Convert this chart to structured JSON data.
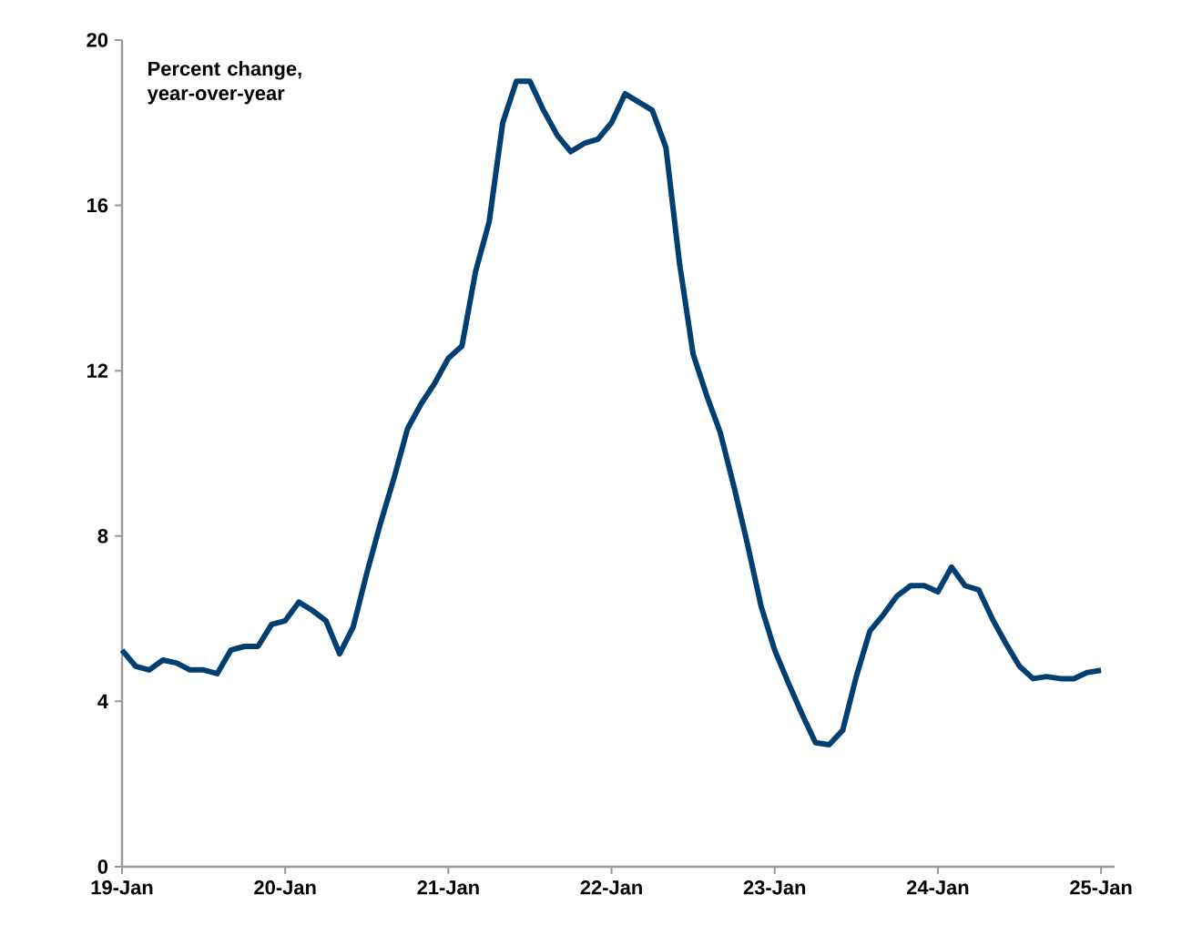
{
  "chart_data": {
    "type": "line",
    "title": "Percent change, year-over-year",
    "x": [
      "2019-01",
      "2019-02",
      "2019-03",
      "2019-04",
      "2019-05",
      "2019-06",
      "2019-07",
      "2019-08",
      "2019-09",
      "2019-10",
      "2019-11",
      "2019-12",
      "2020-01",
      "2020-02",
      "2020-03",
      "2020-04",
      "2020-05",
      "2020-06",
      "2020-07",
      "2020-08",
      "2020-09",
      "2020-10",
      "2020-11",
      "2020-12",
      "2021-01",
      "2021-02",
      "2021-03",
      "2021-04",
      "2021-05",
      "2021-06",
      "2021-07",
      "2021-08",
      "2021-09",
      "2021-10",
      "2021-11",
      "2021-12",
      "2022-01",
      "2022-02",
      "2022-03",
      "2022-04",
      "2022-05",
      "2022-06",
      "2022-07",
      "2022-08",
      "2022-09",
      "2022-10",
      "2022-11",
      "2022-12",
      "2023-01",
      "2023-02",
      "2023-03",
      "2023-04",
      "2023-05",
      "2023-06",
      "2023-07",
      "2023-08",
      "2023-09",
      "2023-10",
      "2023-11",
      "2023-12",
      "2024-01",
      "2024-02",
      "2024-03",
      "2024-04",
      "2024-05",
      "2024-06",
      "2024-07",
      "2024-08",
      "2024-09",
      "2024-10",
      "2024-11",
      "2024-12",
      "2025-01"
    ],
    "series": [
      {
        "color": "#003f72",
        "values": [
          5.24,
          4.85,
          4.76,
          5.0,
          4.93,
          4.76,
          4.76,
          4.67,
          5.24,
          5.33,
          5.33,
          5.86,
          5.95,
          6.4,
          6.2,
          5.95,
          5.15,
          5.8,
          7.1,
          8.3,
          9.4,
          10.6,
          11.2,
          11.7,
          12.3,
          12.6,
          14.4,
          15.6,
          18.0,
          19.0,
          19.0,
          18.3,
          17.7,
          17.3,
          17.5,
          17.6,
          18.0,
          18.7,
          18.5,
          18.3,
          17.4,
          14.6,
          12.4,
          11.4,
          10.5,
          9.2,
          7.8,
          6.3,
          5.24,
          4.45,
          3.7,
          3.0,
          2.95,
          3.3,
          4.6,
          5.7,
          6.1,
          6.55,
          6.8,
          6.8,
          6.65,
          7.25,
          6.8,
          6.7,
          6.0,
          5.4,
          4.85,
          4.55,
          4.6,
          4.55,
          4.55,
          4.7,
          4.75
        ]
      }
    ],
    "xlim": [
      "2019-01",
      "2025-02"
    ],
    "xticks": [
      {
        "value": "2019-01",
        "label": "19-Jan"
      },
      {
        "value": "2020-01",
        "label": "20-Jan"
      },
      {
        "value": "2021-01",
        "label": "21-Jan"
      },
      {
        "value": "2022-01",
        "label": "22-Jan"
      },
      {
        "value": "2023-01",
        "label": "23-Jan"
      },
      {
        "value": "2024-01",
        "label": "24-Jan"
      },
      {
        "value": "2025-01",
        "label": "25-Jan"
      }
    ],
    "ylim": [
      0,
      20
    ],
    "yticks": [
      0,
      4,
      8,
      12,
      16,
      20
    ],
    "grid": false,
    "marker": "none",
    "line_style": "solid"
  }
}
